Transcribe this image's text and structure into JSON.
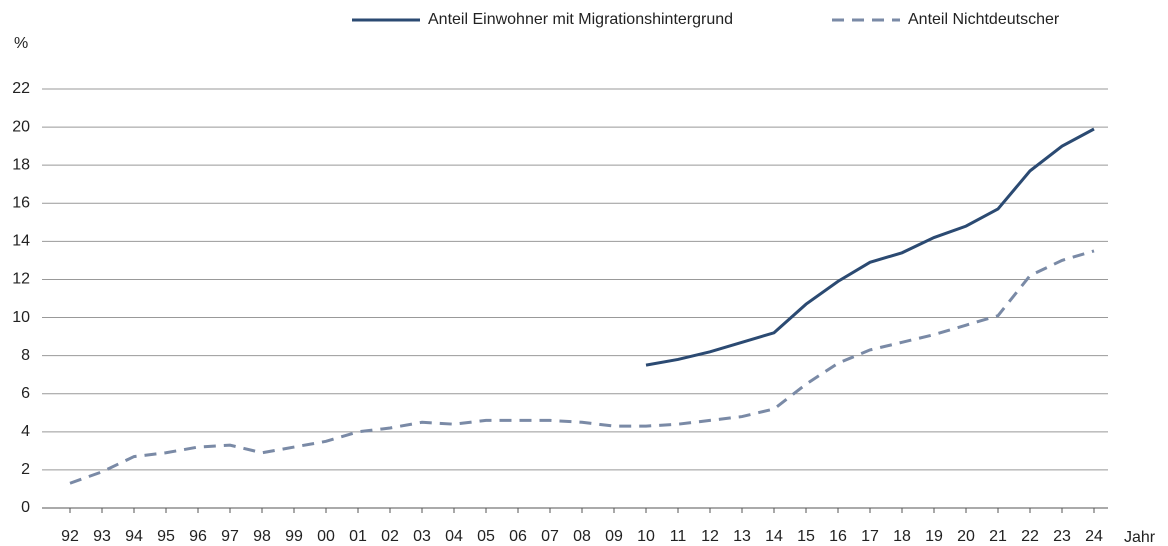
{
  "chart_data": {
    "type": "line",
    "y_label": "%",
    "x_label": "Jahr",
    "categories": [
      "92",
      "93",
      "94",
      "95",
      "96",
      "97",
      "98",
      "99",
      "00",
      "01",
      "02",
      "03",
      "04",
      "05",
      "06",
      "07",
      "08",
      "09",
      "10",
      "11",
      "12",
      "13",
      "14",
      "15",
      "16",
      "17",
      "18",
      "19",
      "20",
      "21",
      "22",
      "23",
      "24"
    ],
    "series": [
      {
        "name": "Anteil Einwohner mit Migrationshintergrund",
        "color": "#2b4a72",
        "dash": false,
        "values": [
          null,
          null,
          null,
          null,
          null,
          null,
          null,
          null,
          null,
          null,
          null,
          null,
          null,
          null,
          null,
          null,
          null,
          null,
          7.5,
          7.8,
          8.2,
          8.7,
          9.2,
          10.7,
          11.9,
          12.9,
          13.4,
          14.2,
          14.8,
          15.7,
          17.7,
          19.0,
          19.9
        ]
      },
      {
        "name": "Anteil Nichtdeutscher",
        "color": "#7a8aa6",
        "dash": true,
        "values": [
          1.3,
          1.9,
          2.7,
          2.9,
          3.2,
          3.3,
          2.9,
          3.2,
          3.5,
          4.0,
          4.2,
          4.5,
          4.4,
          4.6,
          4.6,
          4.6,
          4.5,
          4.3,
          4.3,
          4.4,
          4.6,
          4.8,
          5.2,
          6.5,
          7.6,
          8.3,
          8.7,
          9.1,
          9.6,
          10.1,
          12.2,
          13.0,
          13.5
        ]
      }
    ],
    "ylim": [
      0,
      22
    ],
    "yticks": [
      0,
      2,
      4,
      6,
      8,
      10,
      12,
      14,
      16,
      18,
      20,
      22
    ],
    "grid": true,
    "legend": "top-right"
  }
}
